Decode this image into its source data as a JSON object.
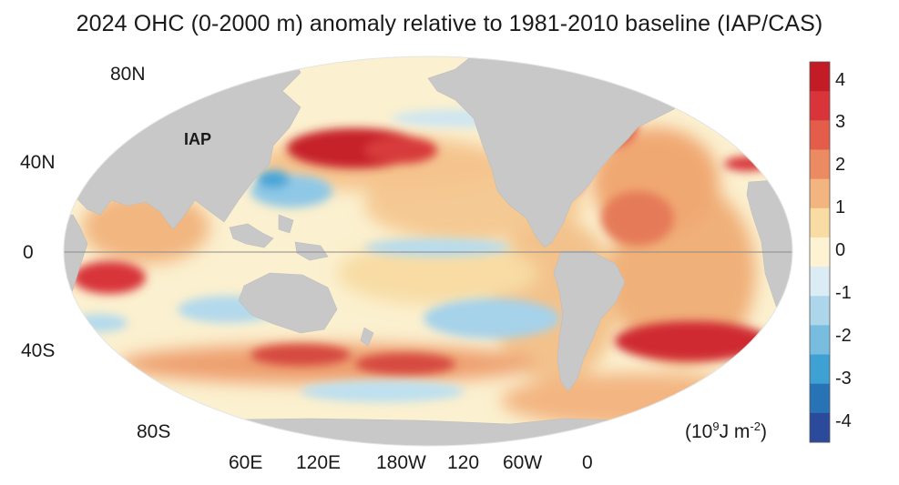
{
  "title": "2024 OHC (0-2000 m) anomaly relative to 1981-2010 baseline (IAP/CAS)",
  "map_label": "IAP",
  "latitude_labels": [
    "80N",
    "40N",
    "0",
    "40S",
    "80S"
  ],
  "longitude_labels": [
    "60E",
    "120E",
    "180W",
    "120",
    "60W",
    "0"
  ],
  "colorbar": {
    "ticks": [
      "4",
      "3",
      "2",
      "1",
      "0",
      "-1",
      "-2",
      "-3",
      "-4"
    ],
    "units_base": "(10",
    "units_exp1": "9",
    "units_mid": "J m",
    "units_exp2": "-2",
    "units_end": ")",
    "colors": [
      "#c41c27",
      "#d8343a",
      "#e35d4a",
      "#ec8a62",
      "#f2b57f",
      "#f8dca4",
      "#fdf3d3",
      "#dcecf4",
      "#aed6ea",
      "#78bde0",
      "#3fa0d4",
      "#2873b6",
      "#2b4a9c"
    ]
  },
  "colors": {
    "land": "#c8c8c8",
    "ocean_neutral": "#fbf0cf",
    "equator_line": "#8a8a8a"
  }
}
